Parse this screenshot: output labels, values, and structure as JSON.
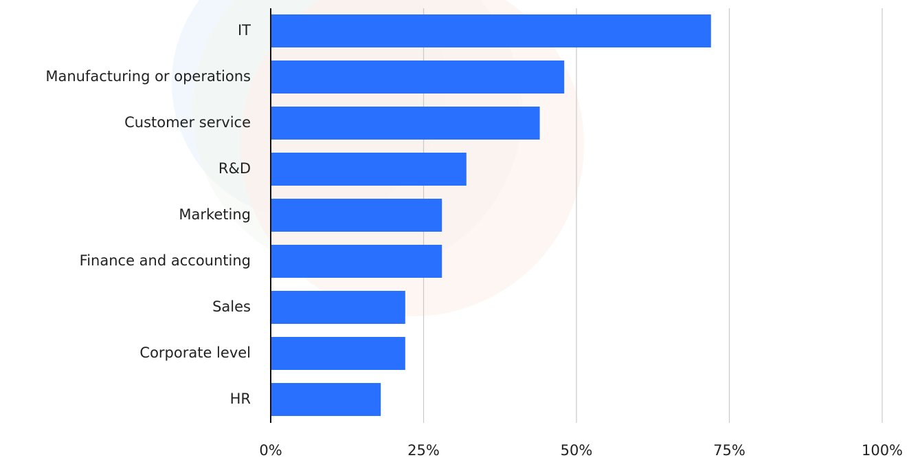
{
  "chart_data": {
    "type": "hbar",
    "categories": [
      "IT",
      "Manufacturing or operations",
      "Customer service",
      "R&D",
      "Marketing",
      "Finance and accounting",
      "Sales",
      "Corporate level",
      "HR"
    ],
    "values": [
      72,
      48,
      44,
      32,
      28,
      28,
      22,
      22,
      18
    ],
    "color": "#2970ff",
    "xlim": [
      0,
      100
    ],
    "xticks": [
      {
        "value": 0,
        "label": "0%"
      },
      {
        "value": 25,
        "label": "25%"
      },
      {
        "value": 50,
        "label": "50%"
      },
      {
        "value": 75,
        "label": "75%"
      },
      {
        "value": 100,
        "label": "100%"
      }
    ],
    "grid": true
  }
}
